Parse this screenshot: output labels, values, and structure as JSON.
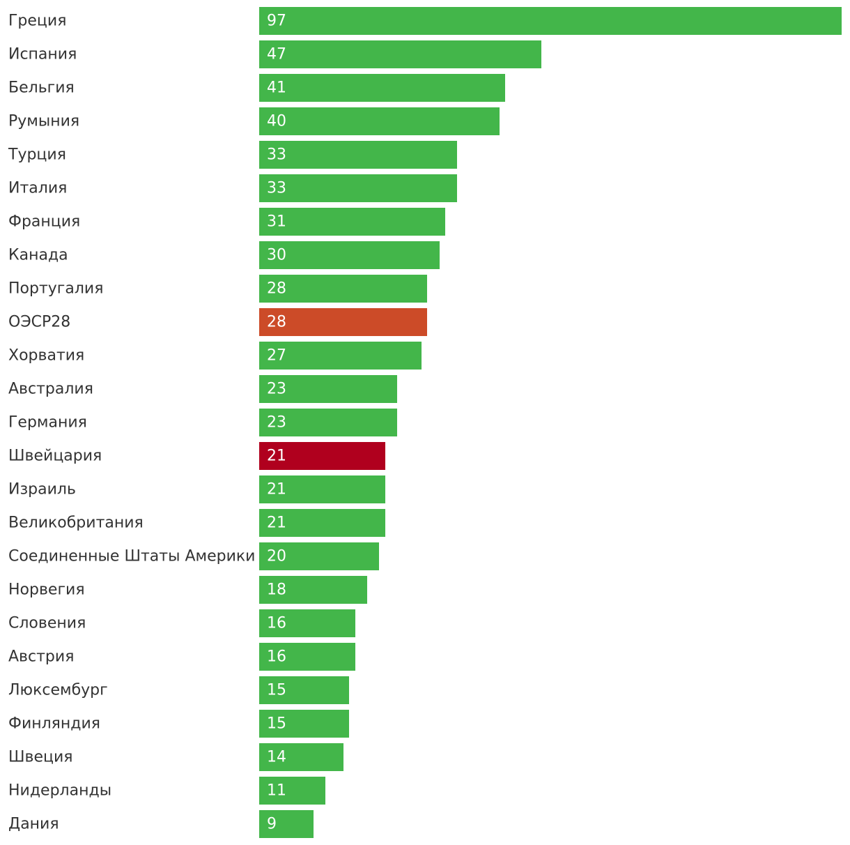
{
  "chart_data": {
    "type": "bar",
    "orientation": "horizontal",
    "xlim": [
      0,
      97
    ],
    "grid": false,
    "legend": "none",
    "categories": [
      "Греция",
      "Испания",
      "Бельгия",
      "Румыния",
      "Турция",
      "Италия",
      "Франция",
      "Канада",
      "Португалия",
      "ОЭСР28",
      "Хорватия",
      "Австралия",
      "Германия",
      "Швейцария",
      "Израиль",
      "Великобритания",
      "Соединенные Штаты Америки",
      "Норвегия",
      "Словения",
      "Австрия",
      "Люксембург",
      "Финляндия",
      "Швеция",
      "Нидерланды",
      "Дания"
    ],
    "values": [
      97,
      47,
      41,
      40,
      33,
      33,
      31,
      30,
      28,
      28,
      27,
      23,
      23,
      21,
      21,
      21,
      20,
      18,
      16,
      16,
      15,
      15,
      14,
      11,
      9
    ],
    "value_labels": [
      "97",
      "47",
      "41",
      "40",
      "33",
      "33",
      "31",
      "30",
      "28",
      "28",
      "27",
      "23",
      "23",
      "21",
      "21",
      "21",
      "20",
      "18",
      "16",
      "16",
      "15",
      "15",
      "14",
      "11",
      "9"
    ],
    "colors": {
      "default": "#43b64a",
      "highlights": {
        "ОЭСР28": "#cc4b28",
        "Швейцария": "#b0001e"
      }
    }
  }
}
